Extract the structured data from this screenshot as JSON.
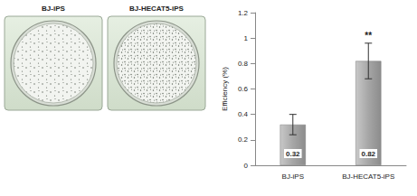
{
  "image_panels": [
    {
      "label": "BJ-iPS"
    },
    {
      "label": "BJ-HECAT5-iPS"
    }
  ],
  "chart_data": {
    "type": "bar",
    "y_label": "Efficiency (%)",
    "categories": [
      "BJ-iPS",
      "BJ-HECAT5-iPS"
    ],
    "values": [
      0.32,
      0.82
    ],
    "error": [
      0.08,
      0.14
    ],
    "color": "#a6a6a6",
    "data_labels": true,
    "annotations": [
      {
        "category": "BJ-HECAT5-iPS",
        "text": "**"
      }
    ],
    "ylim": [
      0,
      1.2
    ],
    "yticks": [
      0,
      0.2,
      0.4,
      0.6,
      0.8,
      1,
      1.2
    ],
    "grid": false
  }
}
